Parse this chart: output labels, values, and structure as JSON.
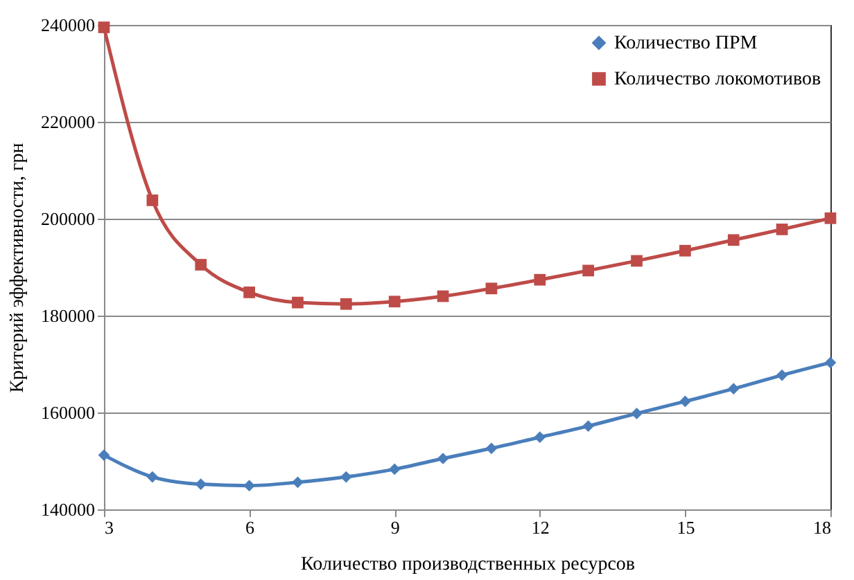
{
  "chart_data": {
    "type": "line",
    "xlabel": "Количество производственных ресурсов",
    "ylabel": "Критерий эффективности, грн",
    "x": [
      3,
      4,
      5,
      6,
      7,
      8,
      9,
      10,
      11,
      12,
      13,
      14,
      15,
      16,
      17,
      18
    ],
    "series": [
      {
        "name": "Количество ПРМ",
        "color": "#4a7ebb",
        "marker": "diamond",
        "values": [
          151200,
          146700,
          145200,
          144900,
          145600,
          146700,
          148300,
          150500,
          152600,
          154900,
          157200,
          159800,
          162300,
          164900,
          167700,
          170300
        ]
      },
      {
        "name": "Количество локомотивов",
        "color": "#be4b48",
        "marker": "square",
        "values": [
          239500,
          203800,
          190500,
          184800,
          182700,
          182400,
          182900,
          184000,
          185600,
          187400,
          189300,
          191300,
          193400,
          195600,
          197800,
          200100
        ]
      }
    ],
    "xlim": [
      3,
      18
    ],
    "xticks": [
      3,
      6,
      9,
      12,
      15,
      18
    ],
    "ylim": [
      140000,
      240000
    ],
    "yticks": [
      140000,
      160000,
      180000,
      200000,
      220000,
      240000
    ],
    "grid": "y",
    "legend": "top right",
    "line_style": "solid"
  }
}
